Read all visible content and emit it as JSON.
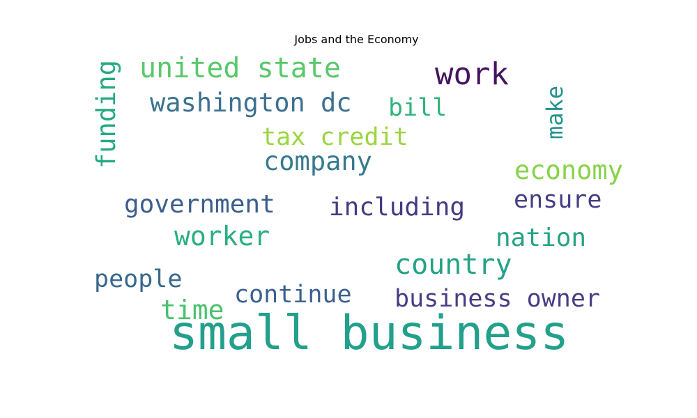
{
  "chart_data": {
    "type": "wordcloud",
    "title": "Jobs and the Economy",
    "words": [
      {
        "text": "small business",
        "color": "#23a08b"
      },
      {
        "text": "work",
        "color": "#451560"
      },
      {
        "text": "united state",
        "color": "#59c86b"
      },
      {
        "text": "washington dc",
        "color": "#3c7190"
      },
      {
        "text": "funding",
        "color": "#26a984"
      },
      {
        "text": "bill",
        "color": "#2fb47c"
      },
      {
        "text": "make",
        "color": "#21938c"
      },
      {
        "text": "tax credit",
        "color": "#9ad53f"
      },
      {
        "text": "company",
        "color": "#357a8e"
      },
      {
        "text": "economy",
        "color": "#87d24a"
      },
      {
        "text": "government",
        "color": "#3b5e8c"
      },
      {
        "text": "including",
        "color": "#463a81"
      },
      {
        "text": "ensure",
        "color": "#453f85"
      },
      {
        "text": "worker",
        "color": "#29ae80"
      },
      {
        "text": "nation",
        "color": "#25a285"
      },
      {
        "text": "country",
        "color": "#23a386"
      },
      {
        "text": "people",
        "color": "#38688d"
      },
      {
        "text": "continue",
        "color": "#3b6090"
      },
      {
        "text": "business owner",
        "color": "#473d83"
      },
      {
        "text": "time",
        "color": "#4ac16d"
      }
    ]
  }
}
